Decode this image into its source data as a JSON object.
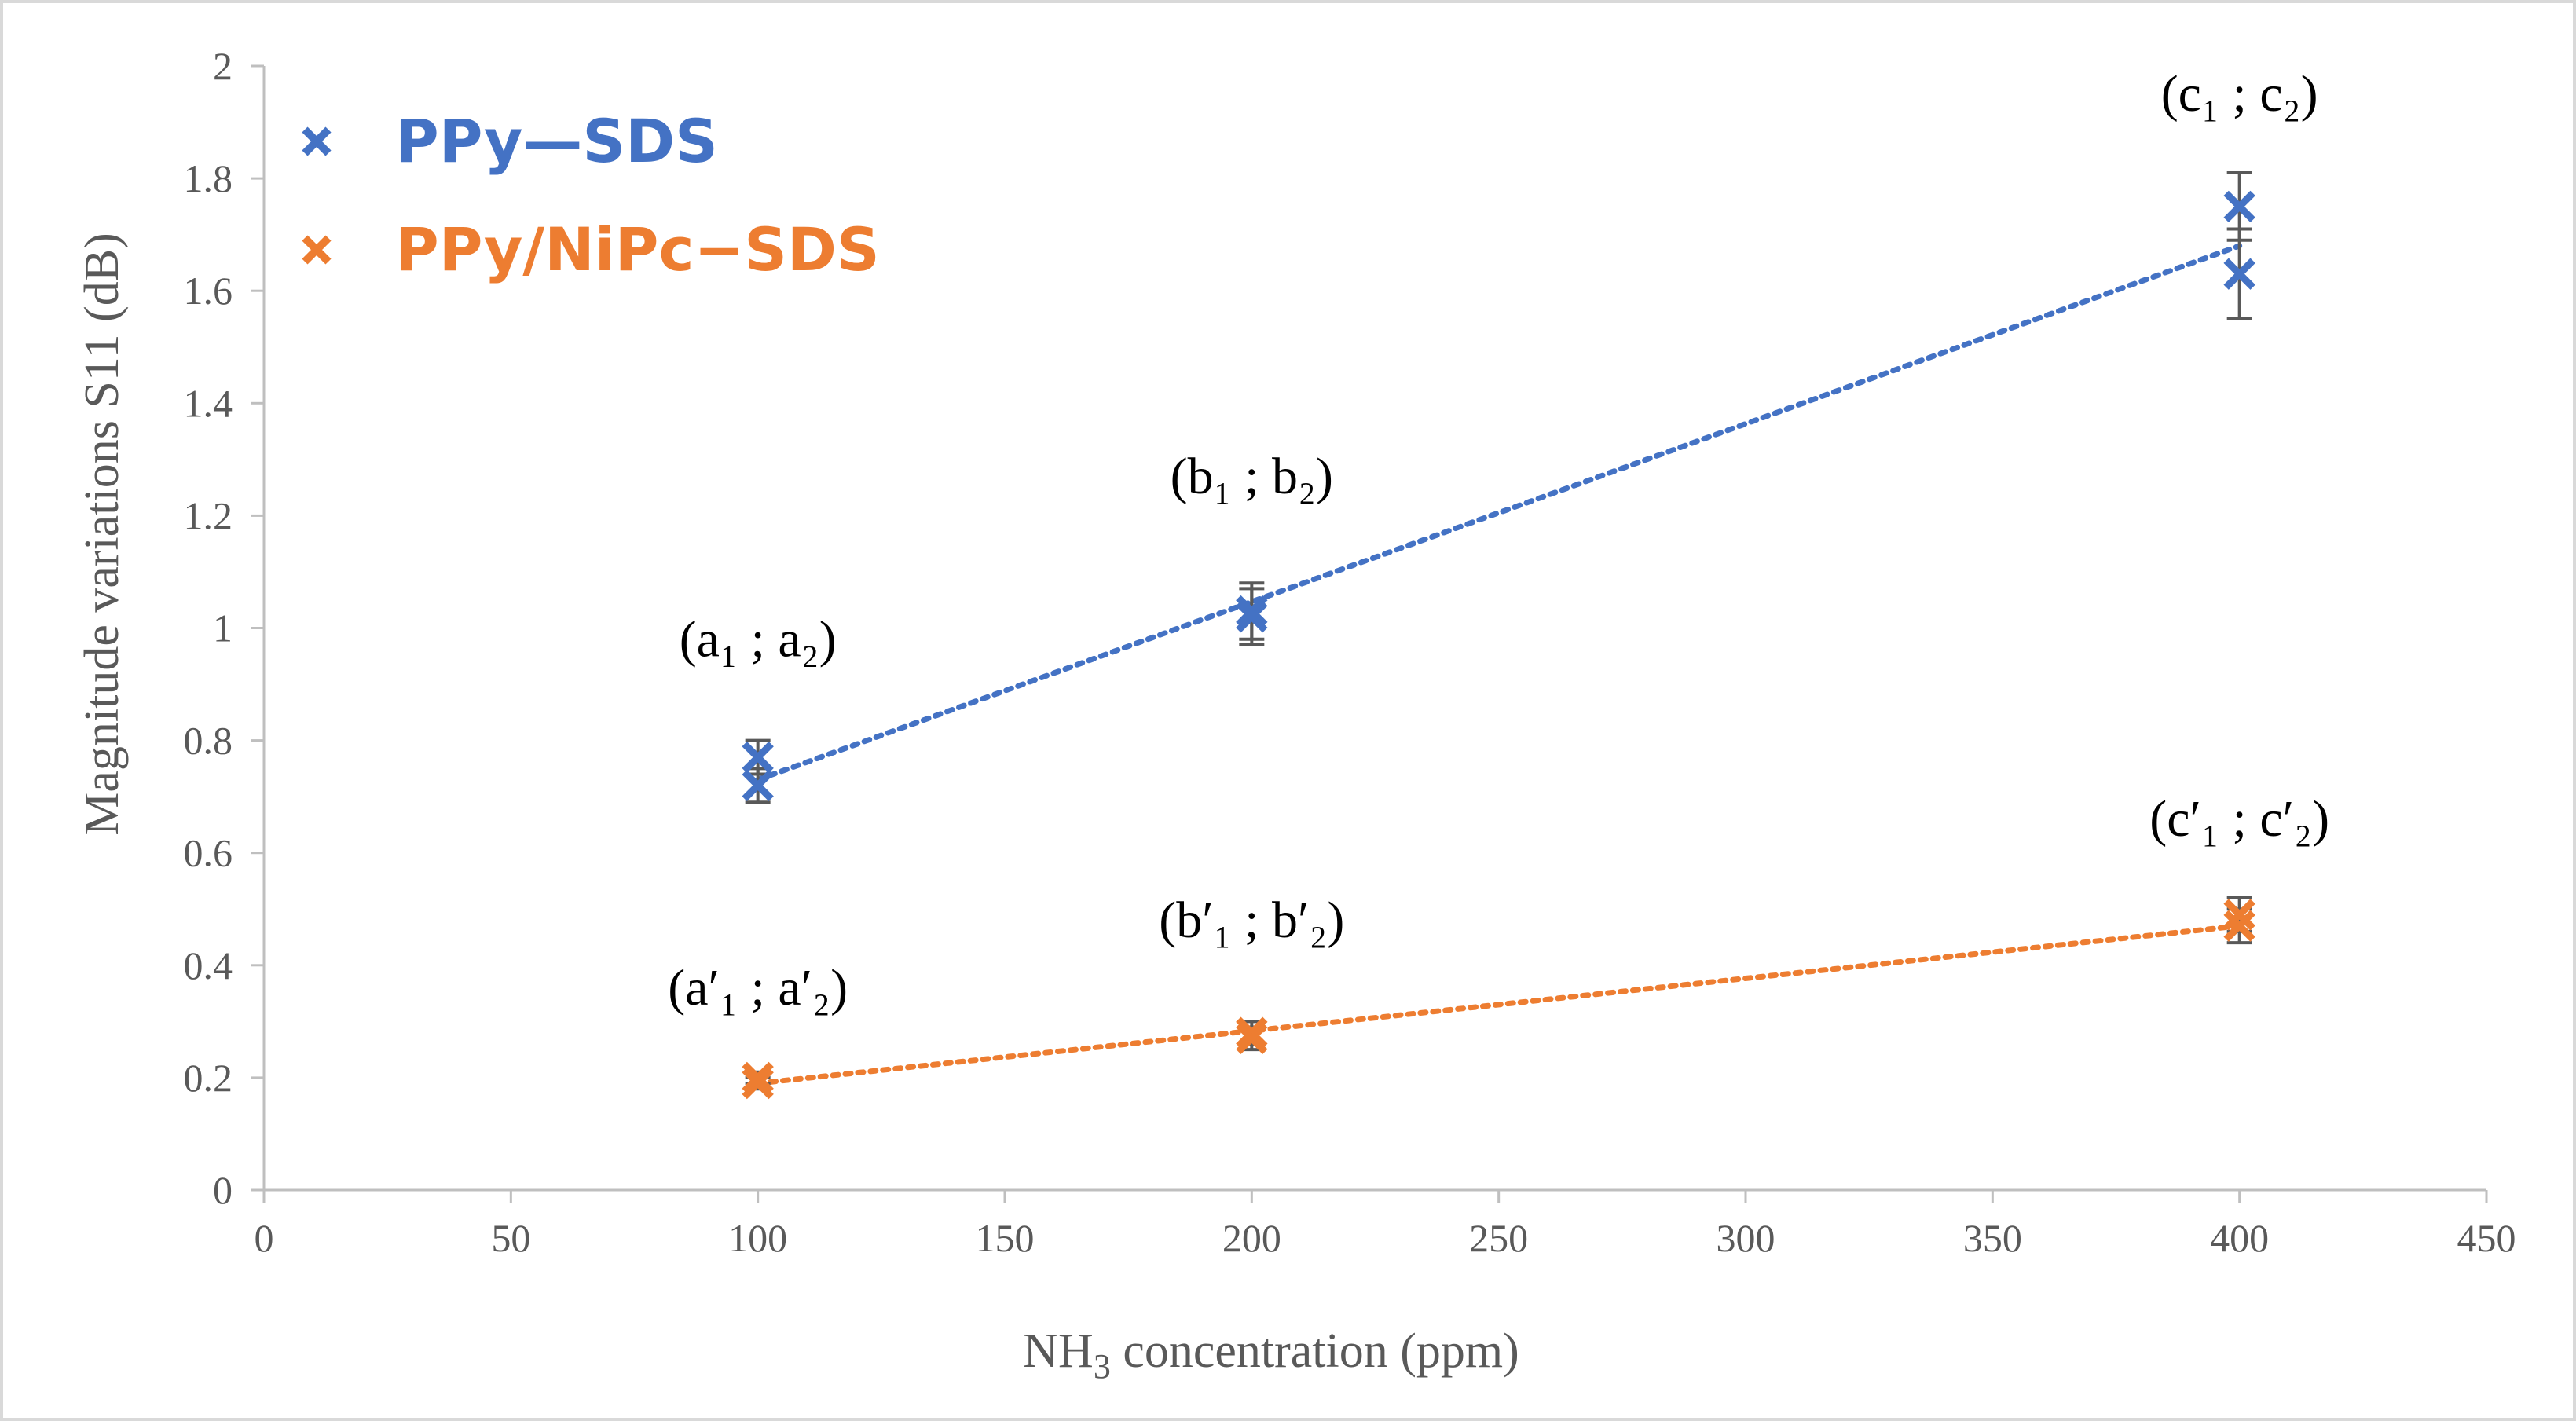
{
  "chart_data": {
    "type": "scatter",
    "xlabel": "NH3 concentration (ppm)",
    "xlabel_main": "NH",
    "xlabel_sub": "3",
    "xlabel_rest": " concentration (ppm)",
    "ylabel": "Magnitude variations S11 (dB)",
    "xlim": [
      0,
      450
    ],
    "ylim": [
      0,
      2
    ],
    "xticks": [
      0,
      50,
      100,
      150,
      200,
      250,
      300,
      350,
      400,
      450
    ],
    "xtick_labels": [
      "0",
      "50",
      "100",
      "150",
      "200",
      "250",
      "300",
      "350",
      "400",
      "450"
    ],
    "yticks": [
      0,
      0.2,
      0.4,
      0.6,
      0.8,
      1.0,
      1.2,
      1.4,
      1.6,
      1.8,
      2.0
    ],
    "ytick_labels": [
      "0",
      "0.2",
      "0.4",
      "0.6",
      "0.8",
      "1",
      "1.2",
      "1.4",
      "1.6",
      "1.8",
      "2"
    ],
    "grid": false,
    "legend_position": "top-left",
    "series": [
      {
        "name": "PPy—SDS",
        "color": "#4472C4",
        "marker": "x",
        "points": [
          {
            "x": 100,
            "y": 0.77,
            "err": 0.03
          },
          {
            "x": 100,
            "y": 0.72,
            "err": 0.03
          },
          {
            "x": 200,
            "y": 1.03,
            "err": 0.05
          },
          {
            "x": 200,
            "y": 1.02,
            "err": 0.05
          },
          {
            "x": 400,
            "y": 1.75,
            "err": 0.06
          },
          {
            "x": 400,
            "y": 1.63,
            "err": 0.08
          }
        ],
        "trendline": {
          "style": "dotted",
          "x": [
            100,
            400
          ],
          "y": [
            0.73,
            1.68
          ]
        }
      },
      {
        "name": "PPy/NiPc−SDS",
        "color": "#ED7D31",
        "marker": "x",
        "points": [
          {
            "x": 100,
            "y": 0.2,
            "err": 0.01
          },
          {
            "x": 100,
            "y": 0.19,
            "err": 0.01
          },
          {
            "x": 200,
            "y": 0.28,
            "err": 0.02
          },
          {
            "x": 200,
            "y": 0.27,
            "err": 0.02
          },
          {
            "x": 400,
            "y": 0.49,
            "err": 0.03
          },
          {
            "x": 400,
            "y": 0.47,
            "err": 0.03
          }
        ],
        "trendline": {
          "style": "dotted",
          "x": [
            100,
            400
          ],
          "y": [
            0.19,
            0.47
          ]
        }
      }
    ],
    "annotations": [
      {
        "text": "(a₁ ; a₂)",
        "x": 100,
        "y": 0.95
      },
      {
        "text": "(b₁ ; b₂)",
        "x": 200,
        "y": 1.24
      },
      {
        "text": "(c₁ ; c₂)",
        "x": 400,
        "y": 1.92
      },
      {
        "text": "(a′₁ ; a′₂)",
        "x": 100,
        "y": 0.33
      },
      {
        "text": "(b′₁ ; b′₂)",
        "x": 200,
        "y": 0.45
      },
      {
        "text": "(c′₁ ; c′₂)",
        "x": 400,
        "y": 0.63
      }
    ]
  }
}
